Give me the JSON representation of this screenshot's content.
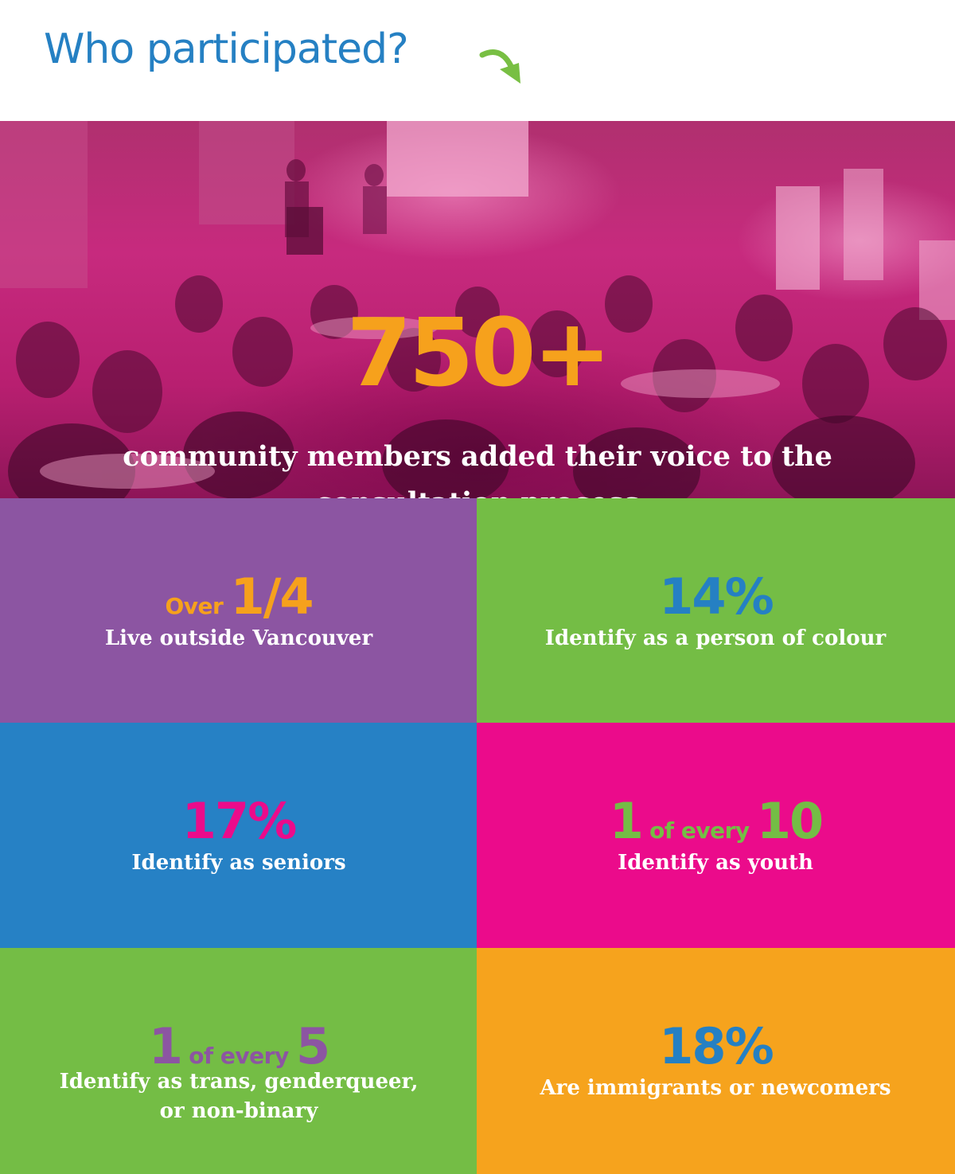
{
  "header": {
    "title": "Who participated?",
    "arrow_icon": "curved-arrow-down-right-icon",
    "arrow_color": "#78bf43",
    "title_color": "#2580c3"
  },
  "hero": {
    "number": "750+",
    "caption_line1": "community members added their voice to the",
    "caption_line2": "consultation process",
    "number_color": "#f6a11c",
    "overlay_color": "#e6127f"
  },
  "stats": [
    {
      "prefix": "Over ",
      "big": "1/4",
      "label": "Live outside Vancouver",
      "bg": "#8c55a2",
      "accent": "#f6a11c"
    },
    {
      "big": "14%",
      "label": "Identify as a person of colour",
      "bg": "#74bd45",
      "accent": "#2580c3"
    },
    {
      "big": "17%",
      "label": "Identify as seniors",
      "bg": "#2681c5",
      "accent": "#eb0b8b"
    },
    {
      "big_a": "1",
      "middle": " of every ",
      "big_b": "10",
      "label": "Identify as youth",
      "bg": "#eb0b8b",
      "accent": "#74bd45"
    },
    {
      "big_a": "1",
      "middle": " of every ",
      "big_b": "5",
      "label_line1": "Identify as trans, genderqueer,",
      "label_line2": "or non-binary",
      "bg": "#74bd45",
      "accent": "#8c55a2"
    },
    {
      "big": "18%",
      "label": "Are immigrants or newcomers",
      "bg": "#f6a31d",
      "accent": "#2580c3"
    }
  ]
}
